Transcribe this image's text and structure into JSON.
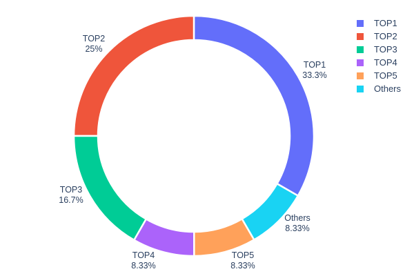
{
  "chart_data": {
    "type": "pie",
    "subtype": "donut",
    "hole": 0.8,
    "title": "",
    "background": "#FFFFFF",
    "text_color": "#2a3f5f",
    "legend_position": "right",
    "slices": [
      {
        "label": "TOP1",
        "value": 33.3,
        "percent": "33.3%",
        "color": "#636EFA"
      },
      {
        "label": "TOP2",
        "value": 25.0,
        "percent": "25%",
        "color": "#EF553B"
      },
      {
        "label": "TOP3",
        "value": 16.7,
        "percent": "16.7%",
        "color": "#00CC96"
      },
      {
        "label": "TOP4",
        "value": 8.33,
        "percent": "8.33%",
        "color": "#AB63FA"
      },
      {
        "label": "TOP5",
        "value": 8.33,
        "percent": "8.33%",
        "color": "#FFA15A"
      },
      {
        "label": "Others",
        "value": 8.33,
        "percent": "8.33%",
        "color": "#19D3F3"
      }
    ],
    "legend_entries": [
      "TOP1",
      "TOP2",
      "TOP3",
      "TOP4",
      "TOP5",
      "Others"
    ]
  }
}
